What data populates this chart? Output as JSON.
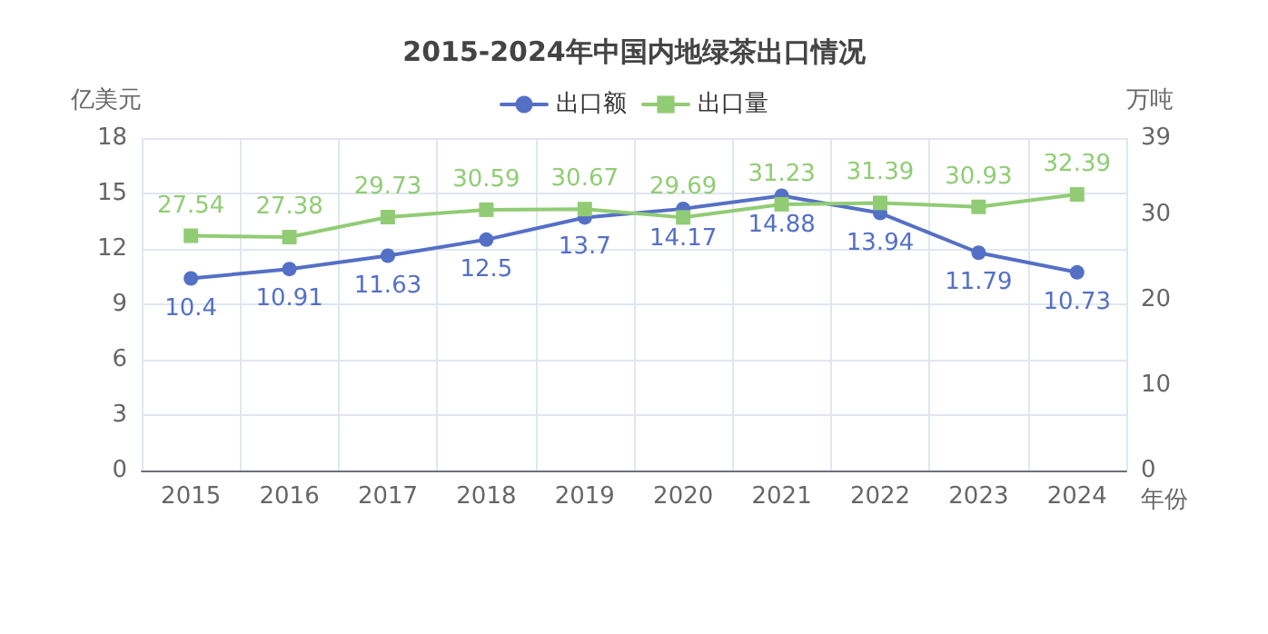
{
  "chart_data": {
    "type": "line",
    "title": "2015-2024年中国内地绿茶出口情况",
    "xlabel": "年份",
    "ylabel": "亿美元",
    "y2label": "万吨",
    "categories": [
      "2015",
      "2016",
      "2017",
      "2018",
      "2019",
      "2020",
      "2021",
      "2022",
      "2023",
      "2024"
    ],
    "series": [
      {
        "name": "出口额",
        "color": "#5470c6",
        "marker": "circle",
        "values": [
          10.4,
          10.91,
          11.63,
          12.5,
          13.7,
          14.17,
          14.88,
          13.94,
          11.79,
          10.73
        ]
      },
      {
        "name": "出口量",
        "color": "#91cc75",
        "marker": "square",
        "axis": "y2",
        "values": [
          27.54,
          27.38,
          29.73,
          30.59,
          30.67,
          29.69,
          31.23,
          31.39,
          30.93,
          32.39
        ]
      }
    ],
    "ylim": [
      0,
      18
    ],
    "yticks": [
      0,
      3,
      6,
      9,
      12,
      15,
      18
    ],
    "y2lim": [
      0,
      39
    ],
    "y2ticks": [
      0,
      10,
      20,
      30,
      39
    ],
    "data_labels": true,
    "legend": "top",
    "grid": true,
    "line_style": "solid"
  }
}
